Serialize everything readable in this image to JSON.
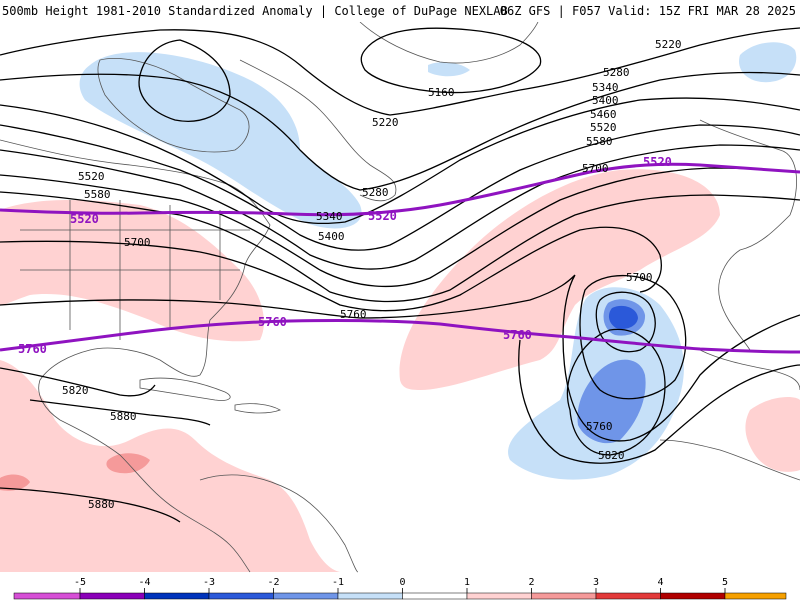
{
  "header": {
    "left_title": "500mb Height 1981-2010 Standardized Anomaly | College of DuPage NEXLAB",
    "right_title": "06Z GFS | F057 Valid: 15Z FRI MAR 28 2025"
  },
  "contour_labels": {
    "c5160": "5160",
    "c5220a": "5220",
    "c5220b": "5220",
    "c5280a": "5280",
    "c5280b": "5280",
    "c5340a": "5340",
    "c5340b": "5340",
    "c5400a": "5400",
    "c5400b": "5400",
    "c5460": "5460",
    "c5520a": "5520",
    "c5520b": "5520",
    "c5580a": "5580",
    "c5580b": "5580",
    "c5700a": "5700",
    "c5700b": "5700",
    "c5700c": "5700",
    "c5760a": "5760",
    "c5760b": "5760",
    "c5820a": "5820",
    "c5820b": "5820",
    "c5880a": "5880",
    "c5880b": "5880"
  },
  "highlight_labels": {
    "h5520a": "5520",
    "h5520b": "5520",
    "h5520c": "5520",
    "h5760a": "5760",
    "h5760b": "5760",
    "h5760c": "5760"
  },
  "colorbar": {
    "ticks": [
      "-5",
      "-4",
      "-3",
      "-2",
      "-1",
      "0",
      "1",
      "2",
      "3",
      "4",
      "5"
    ],
    "colors": [
      "#d64fd6",
      "#8a00b8",
      "#0033bb",
      "#2b59d9",
      "#6f95e8",
      "#c6e0f8",
      "#ffffff",
      "#ffd2d2",
      "#f59a9a",
      "#e23a3a",
      "#b00000",
      "#f6a000"
    ]
  },
  "colors": {
    "highlight_contour": "#8f13c0",
    "contour": "#000000",
    "coast": "#555555"
  }
}
